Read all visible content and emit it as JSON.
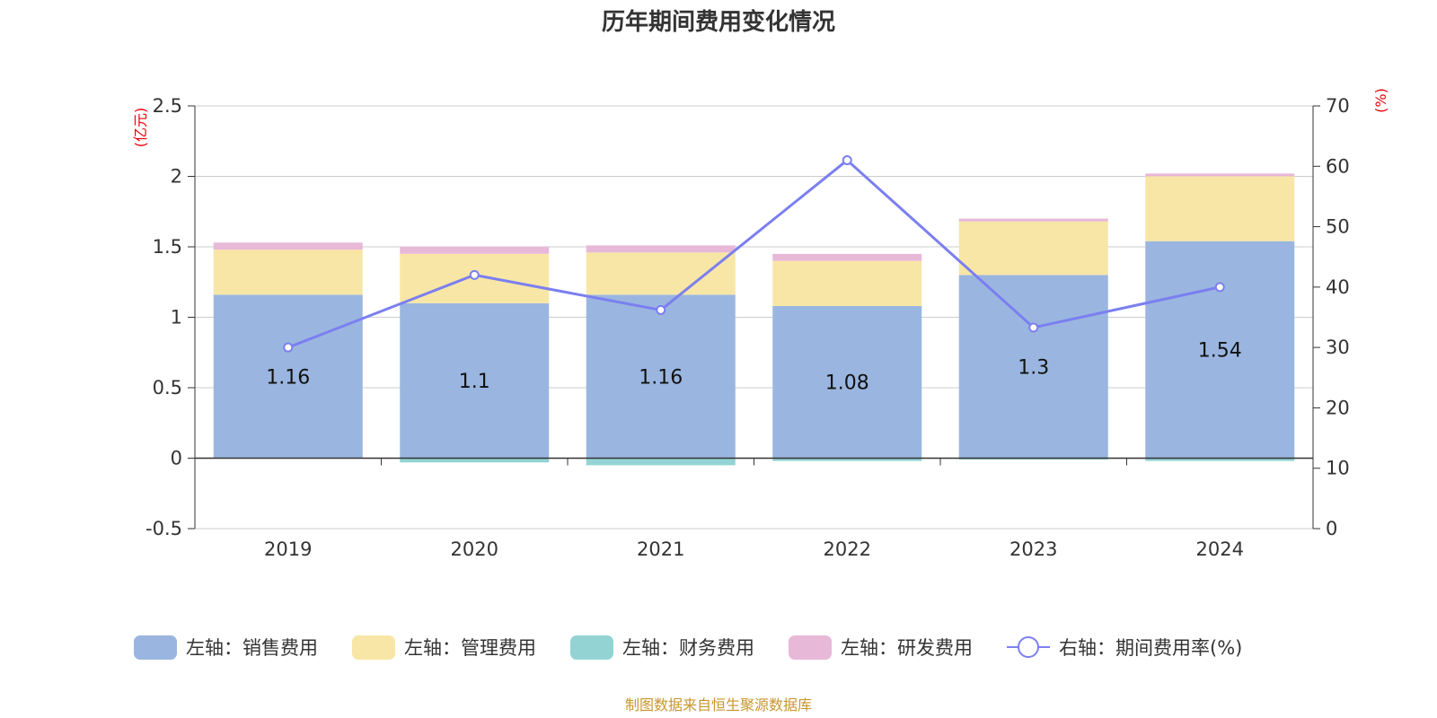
{
  "title": "历年期间费用变化情况",
  "source": "制图数据来自恒生聚源数据库",
  "chart_data": {
    "type": "bar",
    "stacked": true,
    "categories": [
      "2019",
      "2020",
      "2021",
      "2022",
      "2023",
      "2024"
    ],
    "left_axis": {
      "unit": "(亿元)",
      "ylim": [
        -0.5,
        2.5
      ],
      "ticks": [
        "-0.5",
        "0",
        "0.5",
        "1",
        "1.5",
        "2",
        "2.5"
      ]
    },
    "right_axis": {
      "unit": "(%)",
      "ylim": [
        0,
        70
      ],
      "ticks": [
        "0",
        "10",
        "20",
        "30",
        "40",
        "50",
        "60",
        "70"
      ]
    },
    "series": [
      {
        "name": "左轴：销售费用",
        "type": "bar",
        "axis": "left",
        "color": "#9ab6e0",
        "values": [
          1.16,
          1.1,
          1.16,
          1.08,
          1.3,
          1.54
        ],
        "labels": [
          "1.16",
          "1.1",
          "1.16",
          "1.08",
          "1.3",
          "1.54"
        ]
      },
      {
        "name": "左轴：管理费用",
        "type": "bar",
        "axis": "left",
        "color": "#f8e6a6",
        "values": [
          0.32,
          0.35,
          0.3,
          0.32,
          0.38,
          0.46
        ]
      },
      {
        "name": "左轴：财务费用",
        "type": "bar",
        "axis": "left",
        "color": "#93d3d3",
        "values": [
          0.0,
          -0.03,
          -0.05,
          -0.02,
          -0.01,
          -0.02
        ]
      },
      {
        "name": "左轴：研发费用",
        "type": "bar",
        "axis": "left",
        "color": "#e8b8d8",
        "values": [
          0.05,
          0.05,
          0.05,
          0.05,
          0.02,
          0.02
        ]
      },
      {
        "name": "右轴：期间费用率(%)",
        "type": "line",
        "axis": "right",
        "color": "#7b7ff0",
        "values": [
          30.0,
          42.0,
          36.2,
          61.0,
          33.3,
          40.0
        ]
      }
    ],
    "grid": true,
    "legend_position": "bottom"
  }
}
